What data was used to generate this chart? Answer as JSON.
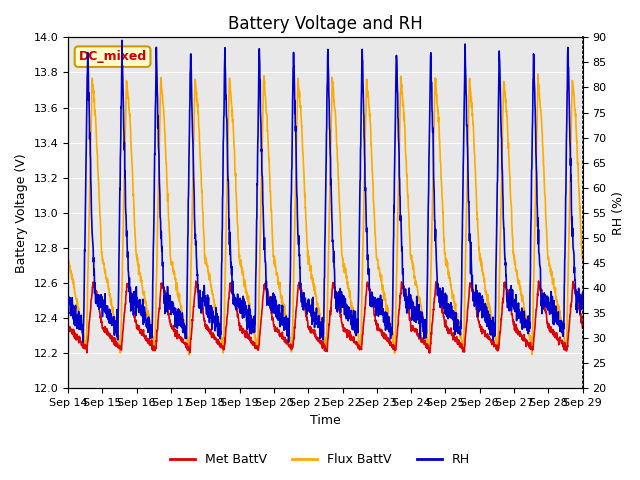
{
  "title": "Battery Voltage and RH",
  "xlabel": "Time",
  "ylabel_left": "Battery Voltage (V)",
  "ylabel_right": "RH (%)",
  "ylim_left": [
    12.0,
    14.0
  ],
  "ylim_right": [
    20,
    90
  ],
  "yticks_left": [
    12.0,
    12.2,
    12.4,
    12.6,
    12.8,
    13.0,
    13.2,
    13.4,
    13.6,
    13.8,
    14.0
  ],
  "yticks_right": [
    20,
    25,
    30,
    35,
    40,
    45,
    50,
    55,
    60,
    65,
    70,
    75,
    80,
    85,
    90
  ],
  "xtick_labels": [
    "Sep 14",
    "Sep 15",
    "Sep 16",
    "Sep 17",
    "Sep 18",
    "Sep 19",
    "Sep 20",
    "Sep 21",
    "Sep 22",
    "Sep 23",
    "Sep 24",
    "Sep 25",
    "Sep 26",
    "Sep 27",
    "Sep 28",
    "Sep 29"
  ],
  "color_met": "#dd0000",
  "color_flux": "#ffaa00",
  "color_rh": "#0000cc",
  "color_bg": "#e8e8e8",
  "annotation_text": "DC_mixed",
  "annotation_color": "#cc0000",
  "annotation_bg": "#ffffcc",
  "annotation_border": "#cc9900",
  "legend_labels": [
    "Met BattV",
    "Flux BattV",
    "RH"
  ],
  "line_width": 1.2,
  "num_days": 15,
  "title_fontsize": 12,
  "label_fontsize": 9,
  "tick_fontsize": 8,
  "figwidth": 6.4,
  "figheight": 4.8,
  "dpi": 100
}
